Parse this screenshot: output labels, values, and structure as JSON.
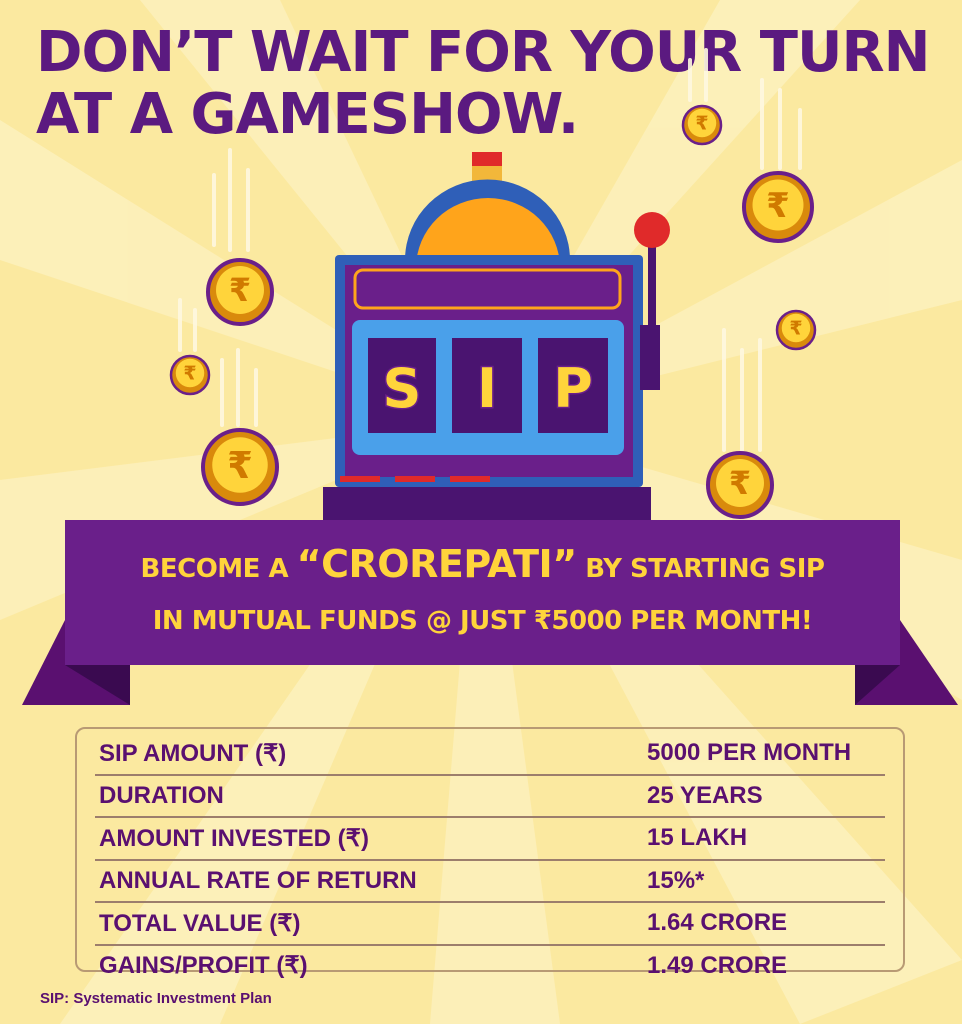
{
  "headline": {
    "line1": "DON’T WAIT FOR YOUR TURN",
    "line2": "AT A GAMESHOW."
  },
  "slot_machine": {
    "reels": [
      "S",
      "I",
      "P"
    ]
  },
  "coin_symbol": "₹",
  "banner": {
    "line1_pre": "BECOME A ",
    "line1_highlight": "“CROREPATI”",
    "line1_post": " BY STARTING SIP",
    "line2": "IN MUTUAL FUNDS @ JUST ₹5000 PER MONTH!"
  },
  "table": {
    "rows": [
      {
        "label": "SIP AMOUNT (₹)",
        "value": "5000 PER MONTH"
      },
      {
        "label": "DURATION",
        "value": "25 YEARS"
      },
      {
        "label": "AMOUNT INVESTED (₹)",
        "value": "15 LAKH"
      },
      {
        "label": "ANNUAL RATE OF RETURN",
        "value": "15%*"
      },
      {
        "label": "TOTAL VALUE (₹)",
        "value": "1.64 CRORE"
      },
      {
        "label": "GAINS/PROFIT (₹)",
        "value": "1.49 CRORE"
      }
    ]
  },
  "footnote": "SIP: Systematic Investment Plan",
  "colors": {
    "background": "#fbe9a0",
    "purple": "#5b1a80",
    "banner": "#6a1f8a",
    "gold": "#ffd43b"
  }
}
